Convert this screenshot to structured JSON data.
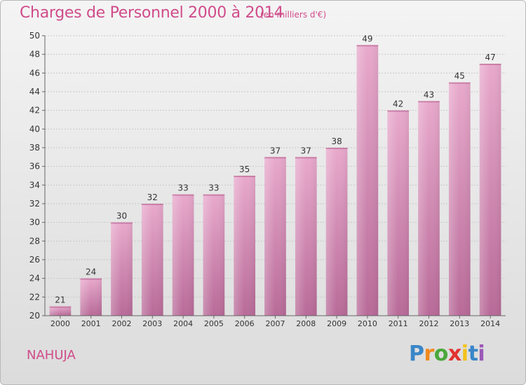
{
  "header": {
    "title": "Charges de Personnel 2000 à 2014",
    "subtitle": "(en milliers d'€)"
  },
  "footer": {
    "commune": "NAHUJA",
    "logo_text": "Proxiti"
  },
  "colors": {
    "title": "#d04c8a",
    "bar_top": "#e8a9cc",
    "bar_bottom": "#b86a98"
  },
  "chart_data": {
    "type": "bar",
    "categories": [
      "2000",
      "2001",
      "2002",
      "2003",
      "2004",
      "2005",
      "2006",
      "2007",
      "2008",
      "2009",
      "2010",
      "2011",
      "2012",
      "2013",
      "2014"
    ],
    "values": [
      21,
      24,
      30,
      32,
      33,
      33,
      35,
      37,
      37,
      38,
      49,
      42,
      43,
      45,
      47
    ],
    "title": "Charges de Personnel 2000 à 2014",
    "subtitle": "(en milliers d'€)",
    "ylim": [
      20,
      50
    ],
    "yticks": [
      20,
      22,
      24,
      26,
      28,
      30,
      32,
      34,
      36,
      38,
      40,
      42,
      44,
      46,
      48,
      50
    ],
    "grid": true,
    "legend": "none"
  }
}
